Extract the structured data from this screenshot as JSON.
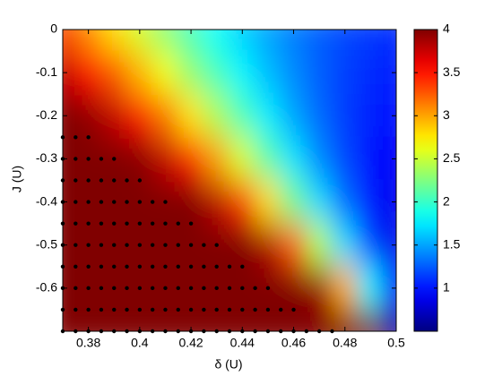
{
  "chart_data": {
    "type": "heatmap",
    "colormap": "jet",
    "xlabel": "δ (U)",
    "ylabel": "J (U)",
    "xlim": [
      0.37,
      0.5
    ],
    "ylim": [
      -0.7,
      0
    ],
    "xticks": [
      0.38,
      0.4,
      0.42,
      0.44,
      0.46,
      0.48,
      0.5
    ],
    "yticks": [
      0,
      -0.1,
      -0.2,
      -0.3,
      -0.4,
      -0.5,
      -0.6
    ],
    "clim": [
      0.5,
      4
    ],
    "cticks": [
      1,
      1.5,
      2,
      2.5,
      3,
      3.5,
      4
    ],
    "x": [
      0.37,
      0.38,
      0.39,
      0.4,
      0.41,
      0.42,
      0.43,
      0.44,
      0.45,
      0.46,
      0.47,
      0.48,
      0.49,
      0.5
    ],
    "y": [
      0,
      -0.1,
      -0.2,
      -0.3,
      -0.4,
      -0.5,
      -0.6,
      -0.7
    ],
    "z": [
      [
        3.33,
        3.07,
        2.8,
        2.54,
        2.28,
        2.04,
        1.83,
        1.65,
        1.5,
        1.37,
        1.27,
        1.19,
        1.14,
        1.09
      ],
      [
        3.76,
        3.53,
        3.26,
        2.94,
        2.64,
        2.31,
        2.04,
        1.78,
        1.58,
        1.41,
        1.26,
        1.16,
        1.08,
        1.03
      ],
      [
        4,
        3.94,
        3.76,
        3.49,
        3.15,
        2.78,
        2.41,
        2.06,
        1.75,
        1.5,
        1.3,
        1.15,
        1.05,
        0.97
      ],
      [
        4,
        4,
        4,
        3.97,
        3.77,
        3.44,
        3.01,
        2.55,
        2.11,
        1.72,
        1.41,
        1.18,
        1.02,
        0.92
      ],
      [
        4,
        4,
        4,
        4,
        4,
        4,
        3.8,
        3.36,
        2.81,
        2.2,
        1.69,
        1.31,
        1.04,
        0.88
      ],
      [
        4,
        4,
        4,
        4,
        4,
        4,
        4,
        4,
        3.83,
        3.24,
        2.44,
        1.7,
        1.18,
        0.87
      ],
      [
        4,
        4,
        4,
        4,
        4,
        4,
        4,
        4,
        4,
        4,
        3.9,
        2.97,
        1.77,
        0.99
      ],
      [
        4,
        4,
        4,
        4,
        4,
        4,
        4,
        4,
        4,
        4,
        4,
        4,
        4,
        0.6
      ]
    ],
    "markers": {
      "color": "#000000",
      "rows": [
        {
          "y": -0.25,
          "x": [
            0.37,
            0.375,
            0.38
          ]
        },
        {
          "y": -0.3,
          "x": [
            0.37,
            0.375,
            0.38,
            0.385,
            0.39
          ]
        },
        {
          "y": -0.35,
          "x": [
            0.37,
            0.375,
            0.38,
            0.385,
            0.39,
            0.395,
            0.4
          ]
        },
        {
          "y": -0.4,
          "x": [
            0.37,
            0.375,
            0.38,
            0.385,
            0.39,
            0.395,
            0.4,
            0.405,
            0.41
          ]
        },
        {
          "y": -0.45,
          "x": [
            0.37,
            0.375,
            0.38,
            0.385,
            0.39,
            0.395,
            0.4,
            0.405,
            0.41,
            0.415,
            0.42
          ]
        },
        {
          "y": -0.5,
          "x": [
            0.37,
            0.375,
            0.38,
            0.385,
            0.39,
            0.395,
            0.4,
            0.405,
            0.41,
            0.415,
            0.42,
            0.425,
            0.43
          ]
        },
        {
          "y": -0.55,
          "x": [
            0.37,
            0.375,
            0.38,
            0.385,
            0.39,
            0.395,
            0.4,
            0.405,
            0.41,
            0.415,
            0.42,
            0.425,
            0.43,
            0.435,
            0.44
          ]
        },
        {
          "y": -0.6,
          "x": [
            0.37,
            0.375,
            0.38,
            0.385,
            0.39,
            0.395,
            0.4,
            0.405,
            0.41,
            0.415,
            0.42,
            0.425,
            0.43,
            0.435,
            0.44,
            0.445,
            0.45
          ]
        },
        {
          "y": -0.65,
          "x": [
            0.37,
            0.375,
            0.38,
            0.385,
            0.39,
            0.395,
            0.4,
            0.405,
            0.41,
            0.415,
            0.42,
            0.425,
            0.43,
            0.435,
            0.44,
            0.445,
            0.45,
            0.455,
            0.46
          ]
        },
        {
          "y": -0.7,
          "x": [
            0.37,
            0.375,
            0.38,
            0.385,
            0.39,
            0.395,
            0.4,
            0.405,
            0.41,
            0.415,
            0.42,
            0.425,
            0.43,
            0.435,
            0.44,
            0.445,
            0.45,
            0.455,
            0.46,
            0.465,
            0.47,
            0.475
          ]
        }
      ]
    }
  }
}
